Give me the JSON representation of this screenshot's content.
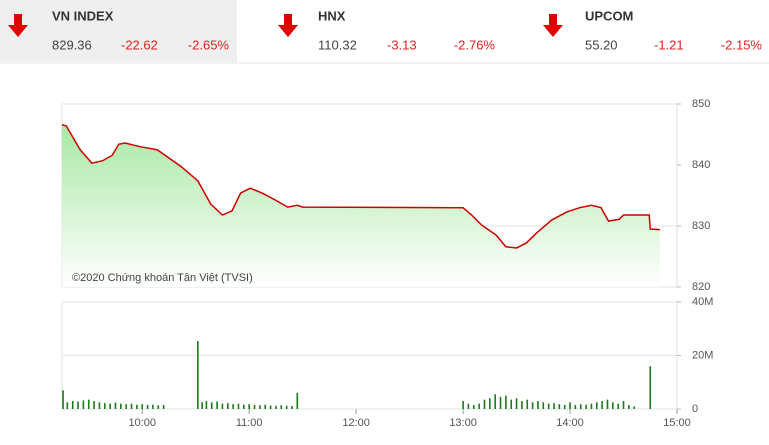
{
  "indices": [
    {
      "name": "VN INDEX",
      "value": "829.36",
      "change": "-22.62",
      "pct": "-2.65%"
    },
    {
      "name": "HNX",
      "value": "110.32",
      "change": "-3.13",
      "pct": "-2.76%"
    },
    {
      "name": "UPCOM",
      "value": "55.20",
      "change": "-1.21",
      "pct": "-2.15%"
    }
  ],
  "chart_data": [
    {
      "type": "line",
      "annotation": "©2020 Chứng khoán Tân Việt (TVSI)",
      "color": "#cc0000",
      "area_color": "#9fe69a",
      "x": [
        9.25,
        9.29,
        9.42,
        9.53,
        9.63,
        9.72,
        9.78,
        9.84,
        9.98,
        10.14,
        10.36,
        10.52,
        10.64,
        10.75,
        10.84,
        10.92,
        11.01,
        11.12,
        11.24,
        11.36,
        11.45,
        11.5,
        13.0,
        13.08,
        13.17,
        13.31,
        13.4,
        13.5,
        13.59,
        13.69,
        13.83,
        13.97,
        14.09,
        14.2,
        14.29,
        14.36,
        14.46,
        14.5,
        14.74,
        14.75,
        14.84
      ],
      "values": [
        846.6,
        846.4,
        842.5,
        840.3,
        840.7,
        841.6,
        843.4,
        843.6,
        843.0,
        842.5,
        839.8,
        837.4,
        833.6,
        831.8,
        832.5,
        835.4,
        836.2,
        835.4,
        834.3,
        833.1,
        833.4,
        833.1,
        833.0,
        831.8,
        830.2,
        828.5,
        826.6,
        826.4,
        827.2,
        828.9,
        831.0,
        832.3,
        833.0,
        833.4,
        833.0,
        830.8,
        831.1,
        831.8,
        831.8,
        829.5,
        829.4
      ],
      "xlim": [
        9.25,
        15
      ],
      "ylim": [
        820,
        850
      ],
      "yticks": [
        820,
        830,
        840,
        850
      ],
      "grid_lines": [
        830
      ]
    },
    {
      "type": "bar",
      "color": "#1a7a1a",
      "x": [
        9.26,
        9.3,
        9.35,
        9.4,
        9.45,
        9.5,
        9.55,
        9.6,
        9.65,
        9.7,
        9.75,
        9.8,
        9.85,
        9.9,
        9.95,
        10.0,
        10.05,
        10.1,
        10.15,
        10.2,
        10.52,
        10.56,
        10.6,
        10.65,
        10.7,
        10.75,
        10.8,
        10.85,
        10.9,
        10.95,
        11.0,
        11.05,
        11.1,
        11.15,
        11.2,
        11.25,
        11.3,
        11.35,
        11.4,
        11.45,
        13.0,
        13.05,
        13.1,
        13.15,
        13.2,
        13.25,
        13.3,
        13.35,
        13.4,
        13.45,
        13.5,
        13.55,
        13.6,
        13.65,
        13.7,
        13.75,
        13.8,
        13.85,
        13.9,
        13.95,
        14.0,
        14.05,
        14.1,
        14.15,
        14.2,
        14.25,
        14.3,
        14.35,
        14.4,
        14.45,
        14.5,
        14.55,
        14.6,
        14.75
      ],
      "values": [
        7,
        2.5,
        3,
        2.8,
        3.2,
        3.5,
        3,
        2.5,
        2.2,
        2,
        2.4,
        2,
        1.8,
        2,
        1.6,
        1.8,
        1.5,
        1.6,
        1.4,
        1.5,
        25.4,
        2.5,
        3,
        2.5,
        2.8,
        2,
        2.2,
        1.8,
        2,
        1.6,
        1.8,
        1.5,
        1.4,
        1.6,
        1.3,
        1.2,
        1.4,
        1.2,
        1.1,
        6,
        3,
        2,
        1.5,
        2,
        3.5,
        4,
        5.5,
        4.5,
        5,
        3.5,
        4,
        3,
        3.5,
        2.5,
        3,
        2.5,
        2,
        2.2,
        1.8,
        1.5,
        2.5,
        1.5,
        1.8,
        1.6,
        2,
        2.5,
        3,
        3.5,
        2.5,
        2,
        3,
        1.5,
        1,
        16
      ],
      "xlim": [
        9.25,
        15
      ],
      "ylim": [
        0,
        40
      ],
      "yticks": [
        0,
        {
          "value": 20,
          "label": "20M"
        },
        {
          "value": 40,
          "label": "40M"
        }
      ],
      "xticks": [
        {
          "value": 10,
          "label": "10:00"
        },
        {
          "value": 11,
          "label": "11:00"
        },
        {
          "value": 12,
          "label": "12:00"
        },
        {
          "value": 13,
          "label": "13:00"
        },
        {
          "value": 14,
          "label": "14:00"
        },
        {
          "value": 15,
          "label": "15:00"
        }
      ],
      "grid_lines": [
        {
          "value": 20,
          "label": "20M"
        }
      ]
    }
  ]
}
